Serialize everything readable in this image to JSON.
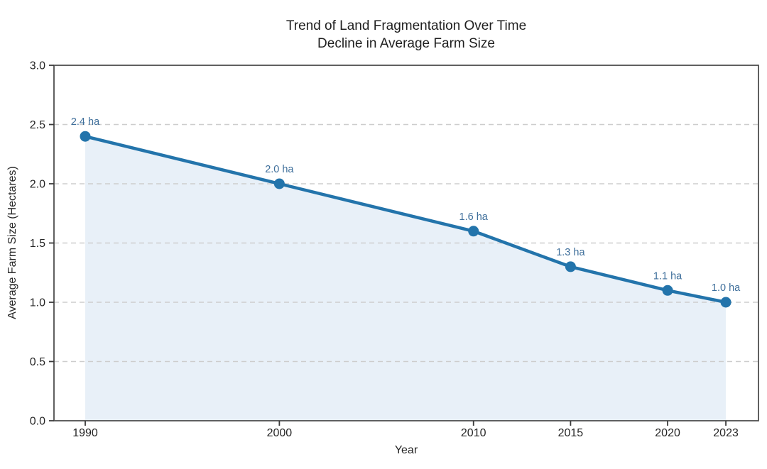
{
  "chart_data": {
    "type": "line",
    "title": "Trend of Land Fragmentation Over Time",
    "subtitle": "Decline in Average Farm Size",
    "xlabel": "Year",
    "ylabel": "Average Farm Size (Hectares)",
    "x": [
      1990,
      2000,
      2010,
      2015,
      2020,
      2023
    ],
    "values": [
      2.4,
      2.0,
      1.6,
      1.3,
      1.1,
      1.0
    ],
    "point_labels": [
      "2.4 ha",
      "2.0 ha",
      "1.6 ha",
      "1.3 ha",
      "1.1 ha",
      "1.0 ha"
    ],
    "xticks": {
      "values": [
        1990,
        2000,
        2010,
        2015,
        2020,
        2023
      ],
      "labels": [
        "1990",
        "2000",
        "2010",
        "2015",
        "2020",
        "2023"
      ]
    },
    "yticks": {
      "values": [
        0.0,
        0.5,
        1.0,
        1.5,
        2.0,
        2.5,
        3.0
      ],
      "labels": [
        "0.0",
        "0.5",
        "1.0",
        "1.5",
        "2.0",
        "2.5",
        "3.0"
      ]
    },
    "xlim": [
      1988.39,
      2024.68
    ],
    "ylim": [
      0.0,
      3.0
    ],
    "grid": "horizontal-dashed",
    "legend": "none",
    "area_fill": true,
    "colors": {
      "line": "#2374ab",
      "marker": "#2374ab",
      "area": "#e8f0f8",
      "point_label": "#3f6f9b",
      "grid": "#cdcdcd",
      "spine": "#4f4f4f",
      "tick": "#3a3a3a",
      "tick_label": "#262626",
      "title": "#1f1f1f",
      "axis_label": "#262626",
      "background": "#ffffff"
    }
  }
}
